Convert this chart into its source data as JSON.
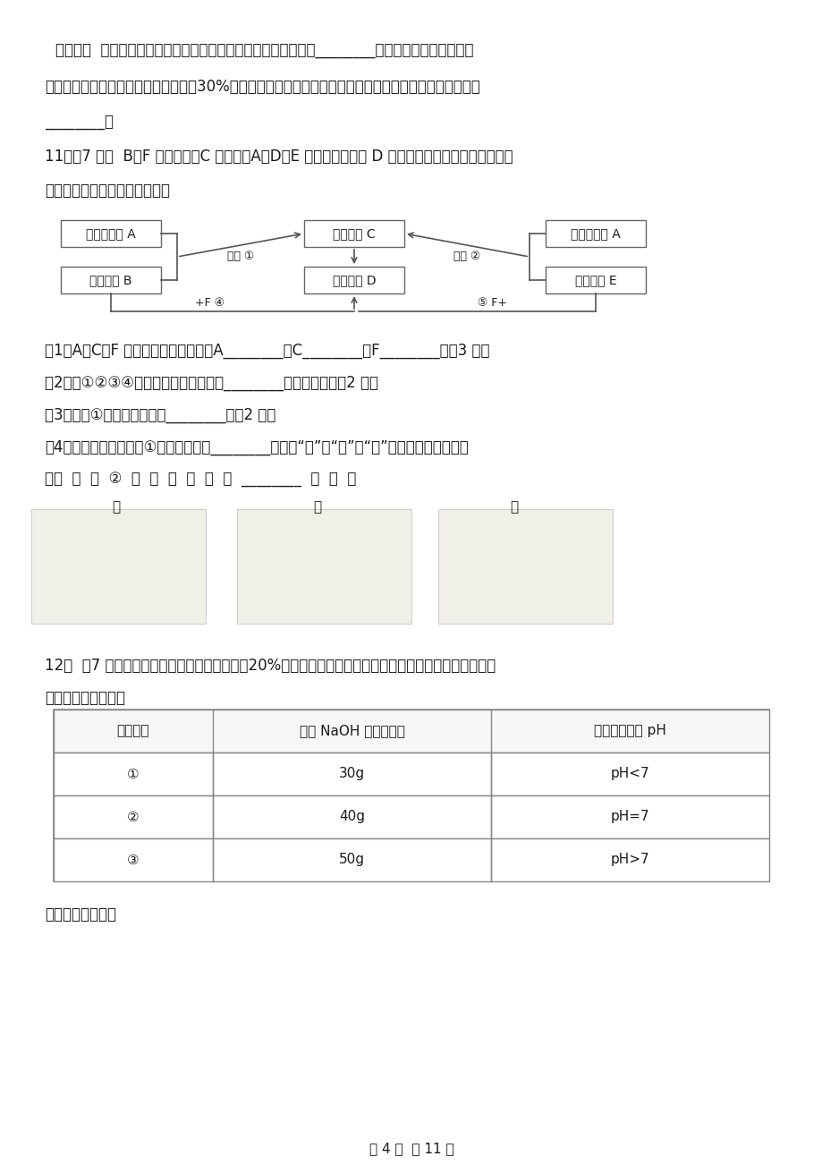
{
  "bg_color": "#ffffff",
  "page_width": 9.2,
  "page_height": 13.02,
  "paragraph1_line1": "请回答：  在以上臭氧分子被破坏的过程中，氯原子所起的作用是________；实验室还可将氧气通过",
  "paragraph1_line2": "高压放电管来制取臭氧。若在反应中有30%的氧气转化为臭氧，则所得混合气中氧气与臭氧的分子个数比为",
  "paragraph1_line3": "________。",
  "q11_line1": "11．（7 分）  B、F 是非金属，C 是金属，A、D、E 是化合物，气体 D 可以使澄清石灰水变浑浊，它们",
  "q11_line2": "之间有如下图所示的转化关系：",
  "sub_q1": "（1）A、C、F 物质的化学式分别是：A________、C________、F________。（3 分）",
  "sub_q2": "（2）在①②③④中，属于化合反应的是________（填序号）。（2 分）",
  "sub_q3": "（3）反应①的化学方程式是________。（2 分）",
  "sub_q4_line1": "（4）在实验室里，反应①选择下图中的________（选填“甲”、“乙”、“丙”，下同）装置进行实",
  "sub_q4_line2": "验，  反  应  ②  选  择  下  图  中  的  ________  实  验  。",
  "apparatus_labels": [
    "甲",
    "乙",
    "丙"
  ],
  "q12_line1": "12．  （7 分）某石油化工厂化验室的实验员用20%的氮氧化钓溶液洗洤一定量石油产品中的残余稀硫酸，",
  "q12_line2": "测得实验数据如表：",
  "table_headers": [
    "实验序号",
    "消耗 NaOH 溶液的质量",
    "洗洤后溶液的 pH"
  ],
  "table_rows": [
    [
      "①",
      "30g",
      "pH<7"
    ],
    [
      "②",
      "40g",
      "pH=7"
    ],
    [
      "③",
      "50g",
      "pH>7"
    ]
  ],
  "last_line": "请回答下列问题：",
  "page_footer": "第 4 页  共 11 页",
  "diag_top_left_1": "黑色氧化物 A",
  "diag_top_left_2": "黑色单质 B",
  "diag_center_top": "红色单质 C",
  "diag_center_bot": "无色气体 D",
  "diag_right_top": "黑色氧化物 A",
  "diag_right_bot": "无色气体 E",
  "arrow_label_left": "高温 ①",
  "arrow_label_right": "加热 ②",
  "arrow_label_bot_left": "+F ④",
  "arrow_label_bot_right": "⑤ F+"
}
